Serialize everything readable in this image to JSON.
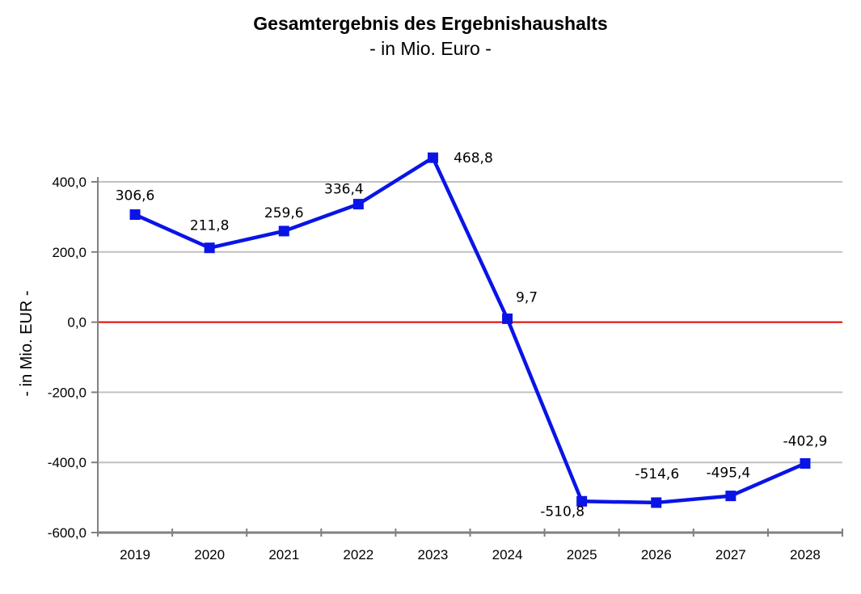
{
  "chart_data": {
    "type": "line",
    "title": "Gesamtergebnis des Ergebnishaushalts",
    "subtitle": "- in Mio. Euro -",
    "xlabel": "",
    "ylabel": "- in Mio. EUR -",
    "categories": [
      "2019",
      "2020",
      "2021",
      "2022",
      "2023",
      "2024",
      "2025",
      "2026",
      "2027",
      "2028"
    ],
    "series": [
      {
        "values": [
          306.6,
          211.8,
          259.6,
          336.4,
          468.8,
          9.7,
          -510.8,
          -514.6,
          -495.4,
          -402.9
        ],
        "labels": [
          "306,6",
          "211,8",
          "259,6",
          "336,4",
          "468,8",
          "9,7",
          "-510,8",
          "-514,6",
          "-495,4",
          "-402,9"
        ],
        "color": "#0a14e6",
        "marker": "square"
      }
    ],
    "ylim": [
      -600,
      400
    ],
    "yticks": [
      400,
      200,
      0,
      -200,
      -400,
      -600
    ],
    "ytick_labels": [
      "400,0",
      "200,0",
      "0,0",
      "-200,0",
      "-400,0",
      "-600,0"
    ],
    "grid": true,
    "zero_line_color": "#e00000",
    "grid_color": "#c0c0c0"
  }
}
